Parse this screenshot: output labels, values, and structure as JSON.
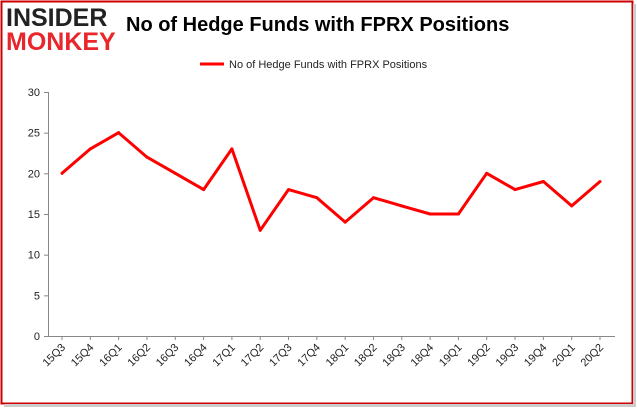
{
  "logo": {
    "line1": "INSIDER",
    "line2": "MONKEY"
  },
  "colors": {
    "series": "#ff0000",
    "axis": "#888888",
    "frame": "#cc0000"
  },
  "chart_data": {
    "type": "line",
    "title": "No of Hedge Funds with FPRX Positions",
    "xlabel": "",
    "ylabel": "",
    "categories": [
      "15Q3",
      "15Q4",
      "16Q1",
      "16Q2",
      "16Q3",
      "16Q4",
      "17Q1",
      "17Q2",
      "17Q3",
      "17Q4",
      "18Q1",
      "18Q2",
      "18Q3",
      "18Q4",
      "19Q1",
      "19Q2",
      "19Q3",
      "19Q4",
      "20Q1",
      "20Q2"
    ],
    "series": [
      {
        "name": "No of Hedge Funds with FPRX Positions",
        "values": [
          20,
          23,
          25,
          22,
          20,
          18,
          23,
          13,
          18,
          17,
          14,
          17,
          16,
          15,
          15,
          20,
          18,
          19,
          16,
          19
        ]
      }
    ],
    "ylim": [
      0,
      30
    ],
    "yticks": [
      "0",
      "5",
      "10",
      "15",
      "20",
      "25",
      "30"
    ],
    "grid": false,
    "legend_position": "top-center"
  }
}
